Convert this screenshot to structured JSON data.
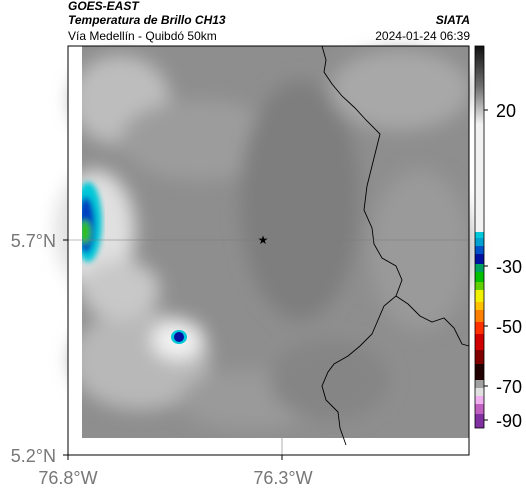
{
  "header": {
    "satellite": "GOES-EAST",
    "product": "Temperatura de Brillo CH13",
    "region": "Vía Medellín - Quibdó 50km",
    "org": "SIATA",
    "datetime": "2024-01-24 06:39"
  },
  "map": {
    "lat_labels": [
      "5.7°N",
      "5.2°N"
    ],
    "lon_labels": [
      "76.8°W",
      "76.3°W"
    ],
    "marker": "star-marker"
  },
  "colorbar": {
    "tick_labels": [
      "20",
      "-30",
      "-50",
      "-70",
      "-90"
    ],
    "colors": {
      "top": "#111111",
      "mid": "#e6e6e6",
      "cyan": "#00c8d8",
      "blue": "#0010c0",
      "green": "#00b000",
      "yellow": "#f0f000",
      "orange": "#ff8000",
      "red": "#d00000",
      "dark": "#200000",
      "pink": "#c060c0"
    }
  }
}
